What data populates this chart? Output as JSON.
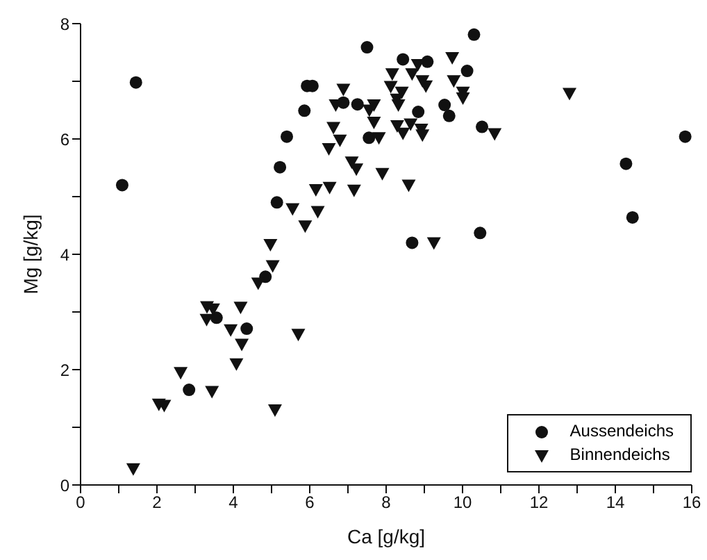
{
  "chart_data": {
    "type": "scatter",
    "xlabel": "Ca [g/kg]",
    "ylabel": "Mg [g/kg]",
    "xlim": [
      0,
      16
    ],
    "ylim": [
      0,
      8
    ],
    "xticks": [
      0,
      {
        "value": 1,
        "label": null
      },
      2,
      {
        "value": 3,
        "label": null
      },
      4,
      {
        "value": 5,
        "label": null
      },
      6,
      {
        "value": 7,
        "label": null
      },
      8,
      {
        "value": 9,
        "label": null
      },
      10,
      {
        "value": 11,
        "label": null
      },
      12,
      {
        "value": 13,
        "label": null
      },
      14,
      {
        "value": 15,
        "label": null
      },
      16
    ],
    "yticks": [
      0,
      {
        "value": 1,
        "label": null
      },
      2,
      {
        "value": 3,
        "label": null
      },
      4,
      {
        "value": 5,
        "label": null
      },
      6,
      {
        "value": 7,
        "label": null
      },
      8
    ],
    "grid": false,
    "legend": "bottom right",
    "series": [
      {
        "name": "Aussendeichs",
        "color": "#111111",
        "marker": "circle",
        "x": [
          1.09,
          1.45,
          2.84,
          3.56,
          4.35,
          4.84,
          5.14,
          5.22,
          5.4,
          5.86,
          5.93,
          6.07,
          6.88,
          7.25,
          7.5,
          7.55,
          8.44,
          9.08,
          8.84,
          9.53,
          9.65,
          10.3,
          10.12,
          10.51,
          15.83,
          14.28,
          14.45,
          10.46,
          8.68
        ],
        "values": [
          5.2,
          6.98,
          1.65,
          2.9,
          2.71,
          3.61,
          4.9,
          5.51,
          6.04,
          6.49,
          6.92,
          6.92,
          6.63,
          6.6,
          7.59,
          6.02,
          7.38,
          7.34,
          6.47,
          6.59,
          6.4,
          7.81,
          7.18,
          6.21,
          6.04,
          5.57,
          4.64,
          4.37,
          4.2
        ]
      },
      {
        "name": "Binnendeichs",
        "color": "#111111",
        "marker": "triangle",
        "x": [
          1.38,
          2.05,
          2.19,
          2.62,
          3.44,
          3.3,
          3.31,
          3.47,
          3.93,
          4.19,
          4.22,
          4.08,
          4.65,
          4.97,
          5.03,
          5.09,
          5.7,
          5.88,
          5.55,
          6.21,
          6.16,
          6.52,
          7.16,
          6.5,
          6.79,
          6.62,
          7.1,
          7.22,
          6.88,
          6.68,
          7.56,
          7.68,
          7.68,
          7.81,
          7.9,
          8.16,
          8.12,
          8.41,
          8.28,
          8.32,
          8.29,
          8.44,
          8.59,
          8.68,
          8.83,
          8.95,
          9.04,
          8.64,
          8.92,
          8.95,
          9.73,
          9.77,
          9.25,
          10.01,
          10.01,
          10.84,
          12.8
        ],
        "values": [
          0.28,
          1.4,
          1.38,
          1.95,
          1.62,
          2.87,
          3.09,
          3.05,
          2.69,
          3.08,
          2.44,
          2.1,
          3.5,
          4.17,
          3.8,
          1.3,
          2.61,
          4.49,
          4.79,
          4.74,
          5.12,
          5.16,
          5.11,
          5.83,
          5.98,
          6.2,
          5.6,
          5.48,
          6.86,
          6.59,
          6.5,
          6.59,
          6.29,
          6.02,
          5.4,
          7.13,
          6.91,
          6.81,
          6.69,
          6.59,
          6.23,
          6.1,
          5.2,
          7.13,
          7.29,
          7.01,
          6.92,
          6.26,
          6.17,
          6.07,
          7.41,
          7.01,
          4.2,
          6.81,
          6.71,
          6.09,
          6.79
        ]
      }
    ]
  }
}
